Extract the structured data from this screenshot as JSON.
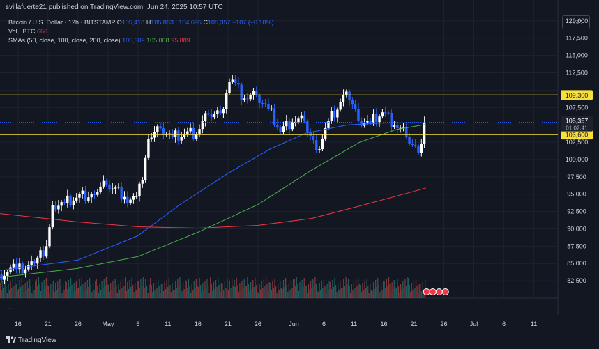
{
  "header": {
    "publisher": "svillafuerte21 published on TradingView.com, Jun 24, 2025 10:57 UTC"
  },
  "legend": {
    "symbol": "Bitcoin / U.S. Dollar · 12h · BITSTAMP",
    "o_key": "O",
    "o": "105,418",
    "h_key": "H",
    "h": "105,883",
    "l_key": "L",
    "l": "104,695",
    "c_key": "C",
    "c": "105,357",
    "change": "−107 (−0.10%)",
    "vol_label": "Vol · BTC",
    "vol": "666",
    "sma_label": "SMAs (50, close, 100, close, 200, close)",
    "sma50": "105,309",
    "sma100": "105,068",
    "sma200": "95,889"
  },
  "currency": "USD",
  "ellipsis": "...",
  "footer": {
    "brand": "TradingView"
  },
  "colors": {
    "up": "#ffffff",
    "down": "#2962ff",
    "sma50": "#2962ff",
    "sma100": "#4caf50",
    "sma200": "#f23645",
    "hline": "#f7e03c",
    "vol_up": "#26a69a",
    "vol_down": "#ef5350"
  },
  "chart_data": {
    "type": "candlestick",
    "title": "Bitcoin / U.S. Dollar · 12h · BITSTAMP",
    "ylim": [
      80000,
      123000
    ],
    "y_ticks": [
      82500,
      85000,
      87500,
      90000,
      92500,
      95000,
      97500,
      100000,
      102500,
      105000,
      107500,
      110000,
      112500,
      115000,
      117500,
      120000
    ],
    "y_tick_labels": [
      "82,500",
      "85,000",
      "87,500",
      "90,000",
      "92,500",
      "95,000",
      "97,500",
      "100,000",
      "102,500",
      "105,000",
      "107,500",
      "110,000",
      "112,500",
      "115,000",
      "117,500",
      "120,000"
    ],
    "x_start": "2025-04-13",
    "x_end": "2025-07-15",
    "x_ticks": [
      {
        "date": "2025-04-16",
        "label": "16"
      },
      {
        "date": "2025-04-21",
        "label": "21"
      },
      {
        "date": "2025-04-26",
        "label": "26"
      },
      {
        "date": "2025-05-01",
        "label": "May"
      },
      {
        "date": "2025-05-06",
        "label": "6"
      },
      {
        "date": "2025-05-11",
        "label": "11"
      },
      {
        "date": "2025-05-16",
        "label": "16"
      },
      {
        "date": "2025-05-21",
        "label": "21"
      },
      {
        "date": "2025-05-26",
        "label": "26"
      },
      {
        "date": "2025-06-01",
        "label": "Jun"
      },
      {
        "date": "2025-06-06",
        "label": "6"
      },
      {
        "date": "2025-06-11",
        "label": "11"
      },
      {
        "date": "2025-06-16",
        "label": "16"
      },
      {
        "date": "2025-06-21",
        "label": "21"
      },
      {
        "date": "2025-06-26",
        "label": "26"
      },
      {
        "date": "2025-07-01",
        "label": "Jul"
      },
      {
        "date": "2025-07-06",
        "label": "6"
      },
      {
        "date": "2025-07-11",
        "label": "11"
      }
    ],
    "horizontal_lines": [
      {
        "value": 109300,
        "label": "109,300"
      },
      {
        "value": 103600,
        "label": "103,600"
      }
    ],
    "last_price": {
      "value": 105357,
      "label": "105,357",
      "countdown": "01:02:41"
    },
    "close_series": [
      {
        "date": "2025-04-13",
        "close": 83400
      },
      {
        "date": "2025-04-16",
        "close": 84200
      },
      {
        "date": "2025-04-19",
        "close": 85000
      },
      {
        "date": "2025-04-21",
        "close": 87500
      },
      {
        "date": "2025-04-22",
        "close": 93400
      },
      {
        "date": "2025-04-24",
        "close": 93700
      },
      {
        "date": "2025-04-26",
        "close": 94500
      },
      {
        "date": "2025-04-29",
        "close": 94900
      },
      {
        "date": "2025-05-01",
        "close": 96400
      },
      {
        "date": "2025-05-04",
        "close": 94600
      },
      {
        "date": "2025-05-06",
        "close": 94700
      },
      {
        "date": "2025-05-07",
        "close": 97000
      },
      {
        "date": "2025-05-08",
        "close": 103000
      },
      {
        "date": "2025-05-10",
        "close": 104500
      },
      {
        "date": "2025-05-12",
        "close": 103200
      },
      {
        "date": "2025-05-14",
        "close": 103600
      },
      {
        "date": "2025-05-16",
        "close": 103700
      },
      {
        "date": "2025-05-18",
        "close": 106500
      },
      {
        "date": "2025-05-20",
        "close": 106700
      },
      {
        "date": "2025-05-21",
        "close": 109600
      },
      {
        "date": "2025-05-22",
        "close": 111500
      },
      {
        "date": "2025-05-24",
        "close": 108800
      },
      {
        "date": "2025-05-26",
        "close": 109300
      },
      {
        "date": "2025-05-28",
        "close": 107300
      },
      {
        "date": "2025-05-30",
        "close": 104000
      },
      {
        "date": "2025-06-01",
        "close": 105400
      },
      {
        "date": "2025-06-03",
        "close": 105500
      },
      {
        "date": "2025-06-05",
        "close": 101300
      },
      {
        "date": "2025-06-07",
        "close": 105600
      },
      {
        "date": "2025-06-09",
        "close": 108300
      },
      {
        "date": "2025-06-10",
        "close": 109800
      },
      {
        "date": "2025-06-12",
        "close": 105600
      },
      {
        "date": "2025-06-14",
        "close": 105300
      },
      {
        "date": "2025-06-16",
        "close": 106800
      },
      {
        "date": "2025-06-18",
        "close": 104900
      },
      {
        "date": "2025-06-20",
        "close": 103300
      },
      {
        "date": "2025-06-22",
        "close": 100900
      },
      {
        "date": "2025-06-23",
        "close": 105357
      }
    ],
    "sma_series": [
      {
        "name": "SMA 50",
        "color": "#2962ff",
        "points": [
          {
            "date": "2025-04-13",
            "value": 84000
          },
          {
            "date": "2025-04-26",
            "value": 85500
          },
          {
            "date": "2025-05-06",
            "value": 89000
          },
          {
            "date": "2025-05-13",
            "value": 93500
          },
          {
            "date": "2025-05-21",
            "value": 98000
          },
          {
            "date": "2025-05-28",
            "value": 101500
          },
          {
            "date": "2025-06-03",
            "value": 103800
          },
          {
            "date": "2025-06-10",
            "value": 105000
          },
          {
            "date": "2025-06-17",
            "value": 105300
          },
          {
            "date": "2025-06-23",
            "value": 105309
          }
        ]
      },
      {
        "name": "SMA 100",
        "color": "#4caf50",
        "points": [
          {
            "date": "2025-04-13",
            "value": 83000
          },
          {
            "date": "2025-04-26",
            "value": 84300
          },
          {
            "date": "2025-05-06",
            "value": 86000
          },
          {
            "date": "2025-05-16",
            "value": 89500
          },
          {
            "date": "2025-05-26",
            "value": 93500
          },
          {
            "date": "2025-06-04",
            "value": 98500
          },
          {
            "date": "2025-06-12",
            "value": 102500
          },
          {
            "date": "2025-06-18",
            "value": 104300
          },
          {
            "date": "2025-06-23",
            "value": 105068
          }
        ]
      },
      {
        "name": "SMA 200",
        "color": "#f23645",
        "points": [
          {
            "date": "2025-04-13",
            "value": 92200
          },
          {
            "date": "2025-04-26",
            "value": 91000
          },
          {
            "date": "2025-05-06",
            "value": 90300
          },
          {
            "date": "2025-05-16",
            "value": 90100
          },
          {
            "date": "2025-05-26",
            "value": 90500
          },
          {
            "date": "2025-06-04",
            "value": 91500
          },
          {
            "date": "2025-06-12",
            "value": 93300
          },
          {
            "date": "2025-06-18",
            "value": 94700
          },
          {
            "date": "2025-06-23",
            "value": 95889
          }
        ]
      }
    ]
  }
}
